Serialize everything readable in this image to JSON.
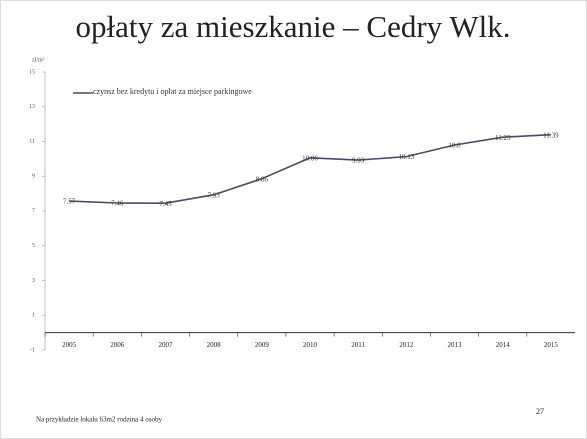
{
  "chart_data": {
    "type": "line",
    "title": "opłaty za mieszkanie – Cedry Wlk.",
    "y_label": "zł/m²",
    "categories": [
      "2005",
      "2006",
      "2007",
      "2008",
      "2009",
      "2010",
      "2011",
      "2012",
      "2013",
      "2014",
      "2015"
    ],
    "series": [
      {
        "name": "czynsz bez kredytu i opłat za miejsce parkingowe",
        "color": "#4a4a66",
        "values": [
          7.57,
          7.46,
          7.45,
          7.93,
          8.86,
          10.06,
          9.93,
          10.13,
          10.8,
          11.25,
          11.39
        ]
      }
    ],
    "ylim": [
      -1,
      15
    ],
    "yticks": [
      -1,
      1,
      3,
      5,
      7,
      9,
      11,
      13,
      15
    ],
    "footnote": "Na przykładzie lokalu 63m2 rodzina 4 osoby",
    "page_number": "27"
  }
}
